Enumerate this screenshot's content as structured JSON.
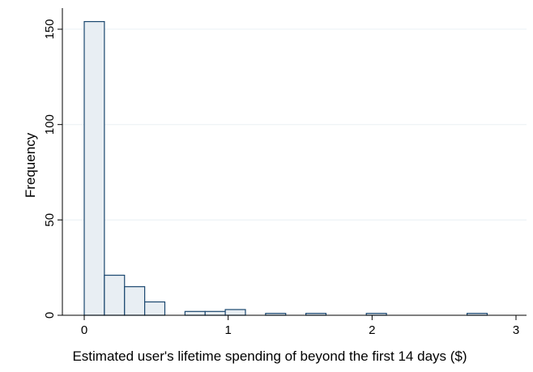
{
  "chart_data": {
    "type": "bar",
    "subtype": "histogram",
    "xlabel": "Estimated user's lifetime spending of beyond the first 14 days ($)",
    "ylabel": "Frequency",
    "xlim": [
      0,
      3
    ],
    "ylim": [
      0,
      160
    ],
    "x_ticks": [
      {
        "value": 0,
        "label": "0"
      },
      {
        "value": 1,
        "label": "1"
      },
      {
        "value": 2,
        "label": "2"
      },
      {
        "value": 3,
        "label": "3"
      }
    ],
    "y_ticks": [
      {
        "value": 0,
        "label": "0"
      },
      {
        "value": 50,
        "label": "50"
      },
      {
        "value": 100,
        "label": "100"
      },
      {
        "value": 150,
        "label": "150"
      }
    ],
    "grid": "horizontal",
    "bar_fill": "#e8eef3",
    "bar_stroke": "#1a476f",
    "bins": [
      {
        "x0": 0.0,
        "x1": 0.14,
        "count": 154
      },
      {
        "x0": 0.14,
        "x1": 0.28,
        "count": 21
      },
      {
        "x0": 0.28,
        "x1": 0.42,
        "count": 15
      },
      {
        "x0": 0.42,
        "x1": 0.56,
        "count": 7
      },
      {
        "x0": 0.7,
        "x1": 0.84,
        "count": 2
      },
      {
        "x0": 0.84,
        "x1": 0.98,
        "count": 2
      },
      {
        "x0": 0.98,
        "x1": 1.12,
        "count": 3
      },
      {
        "x0": 1.26,
        "x1": 1.4,
        "count": 1
      },
      {
        "x0": 1.54,
        "x1": 1.68,
        "count": 1
      },
      {
        "x0": 1.96,
        "x1": 2.1,
        "count": 1
      },
      {
        "x0": 2.66,
        "x1": 2.8,
        "count": 1
      }
    ]
  }
}
